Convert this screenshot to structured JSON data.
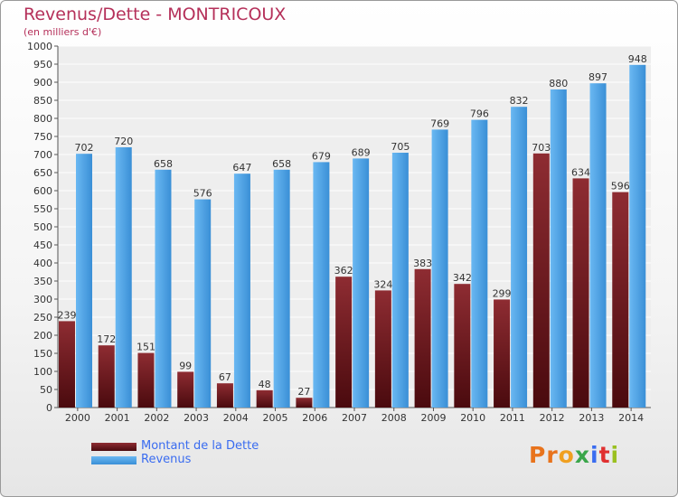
{
  "title": "Revenus/Dette - MONTRICOUX",
  "subtitle": "(en milliers d'€)",
  "logo_text": "Proxiti",
  "colors": {
    "title": "#b5305a",
    "dette": "#7a1f24",
    "revenus": "#4a9fe0",
    "legend_text": "#3a6cf0"
  },
  "chart_data": {
    "type": "bar",
    "title": "Revenus/Dette - MONTRICOUX",
    "ylabel": "(en milliers d'€)",
    "xlabel": "",
    "ylim": [
      0,
      1000
    ],
    "ytick_step": 50,
    "grid": true,
    "legend_position": "bottom-left",
    "categories": [
      "2000",
      "2001",
      "2002",
      "2003",
      "2004",
      "2005",
      "2006",
      "2007",
      "2008",
      "2009",
      "2010",
      "2011",
      "2012",
      "2013",
      "2014"
    ],
    "series": [
      {
        "name": "Montant de la Dette",
        "color": "#7a1f24",
        "values": [
          239,
          172,
          151,
          99,
          67,
          48,
          27,
          362,
          324,
          383,
          342,
          299,
          703,
          634,
          596
        ]
      },
      {
        "name": "Revenus",
        "color": "#4a9fe0",
        "values": [
          702,
          720,
          658,
          576,
          647,
          658,
          679,
          689,
          705,
          769,
          796,
          832,
          880,
          897,
          948
        ]
      }
    ]
  }
}
